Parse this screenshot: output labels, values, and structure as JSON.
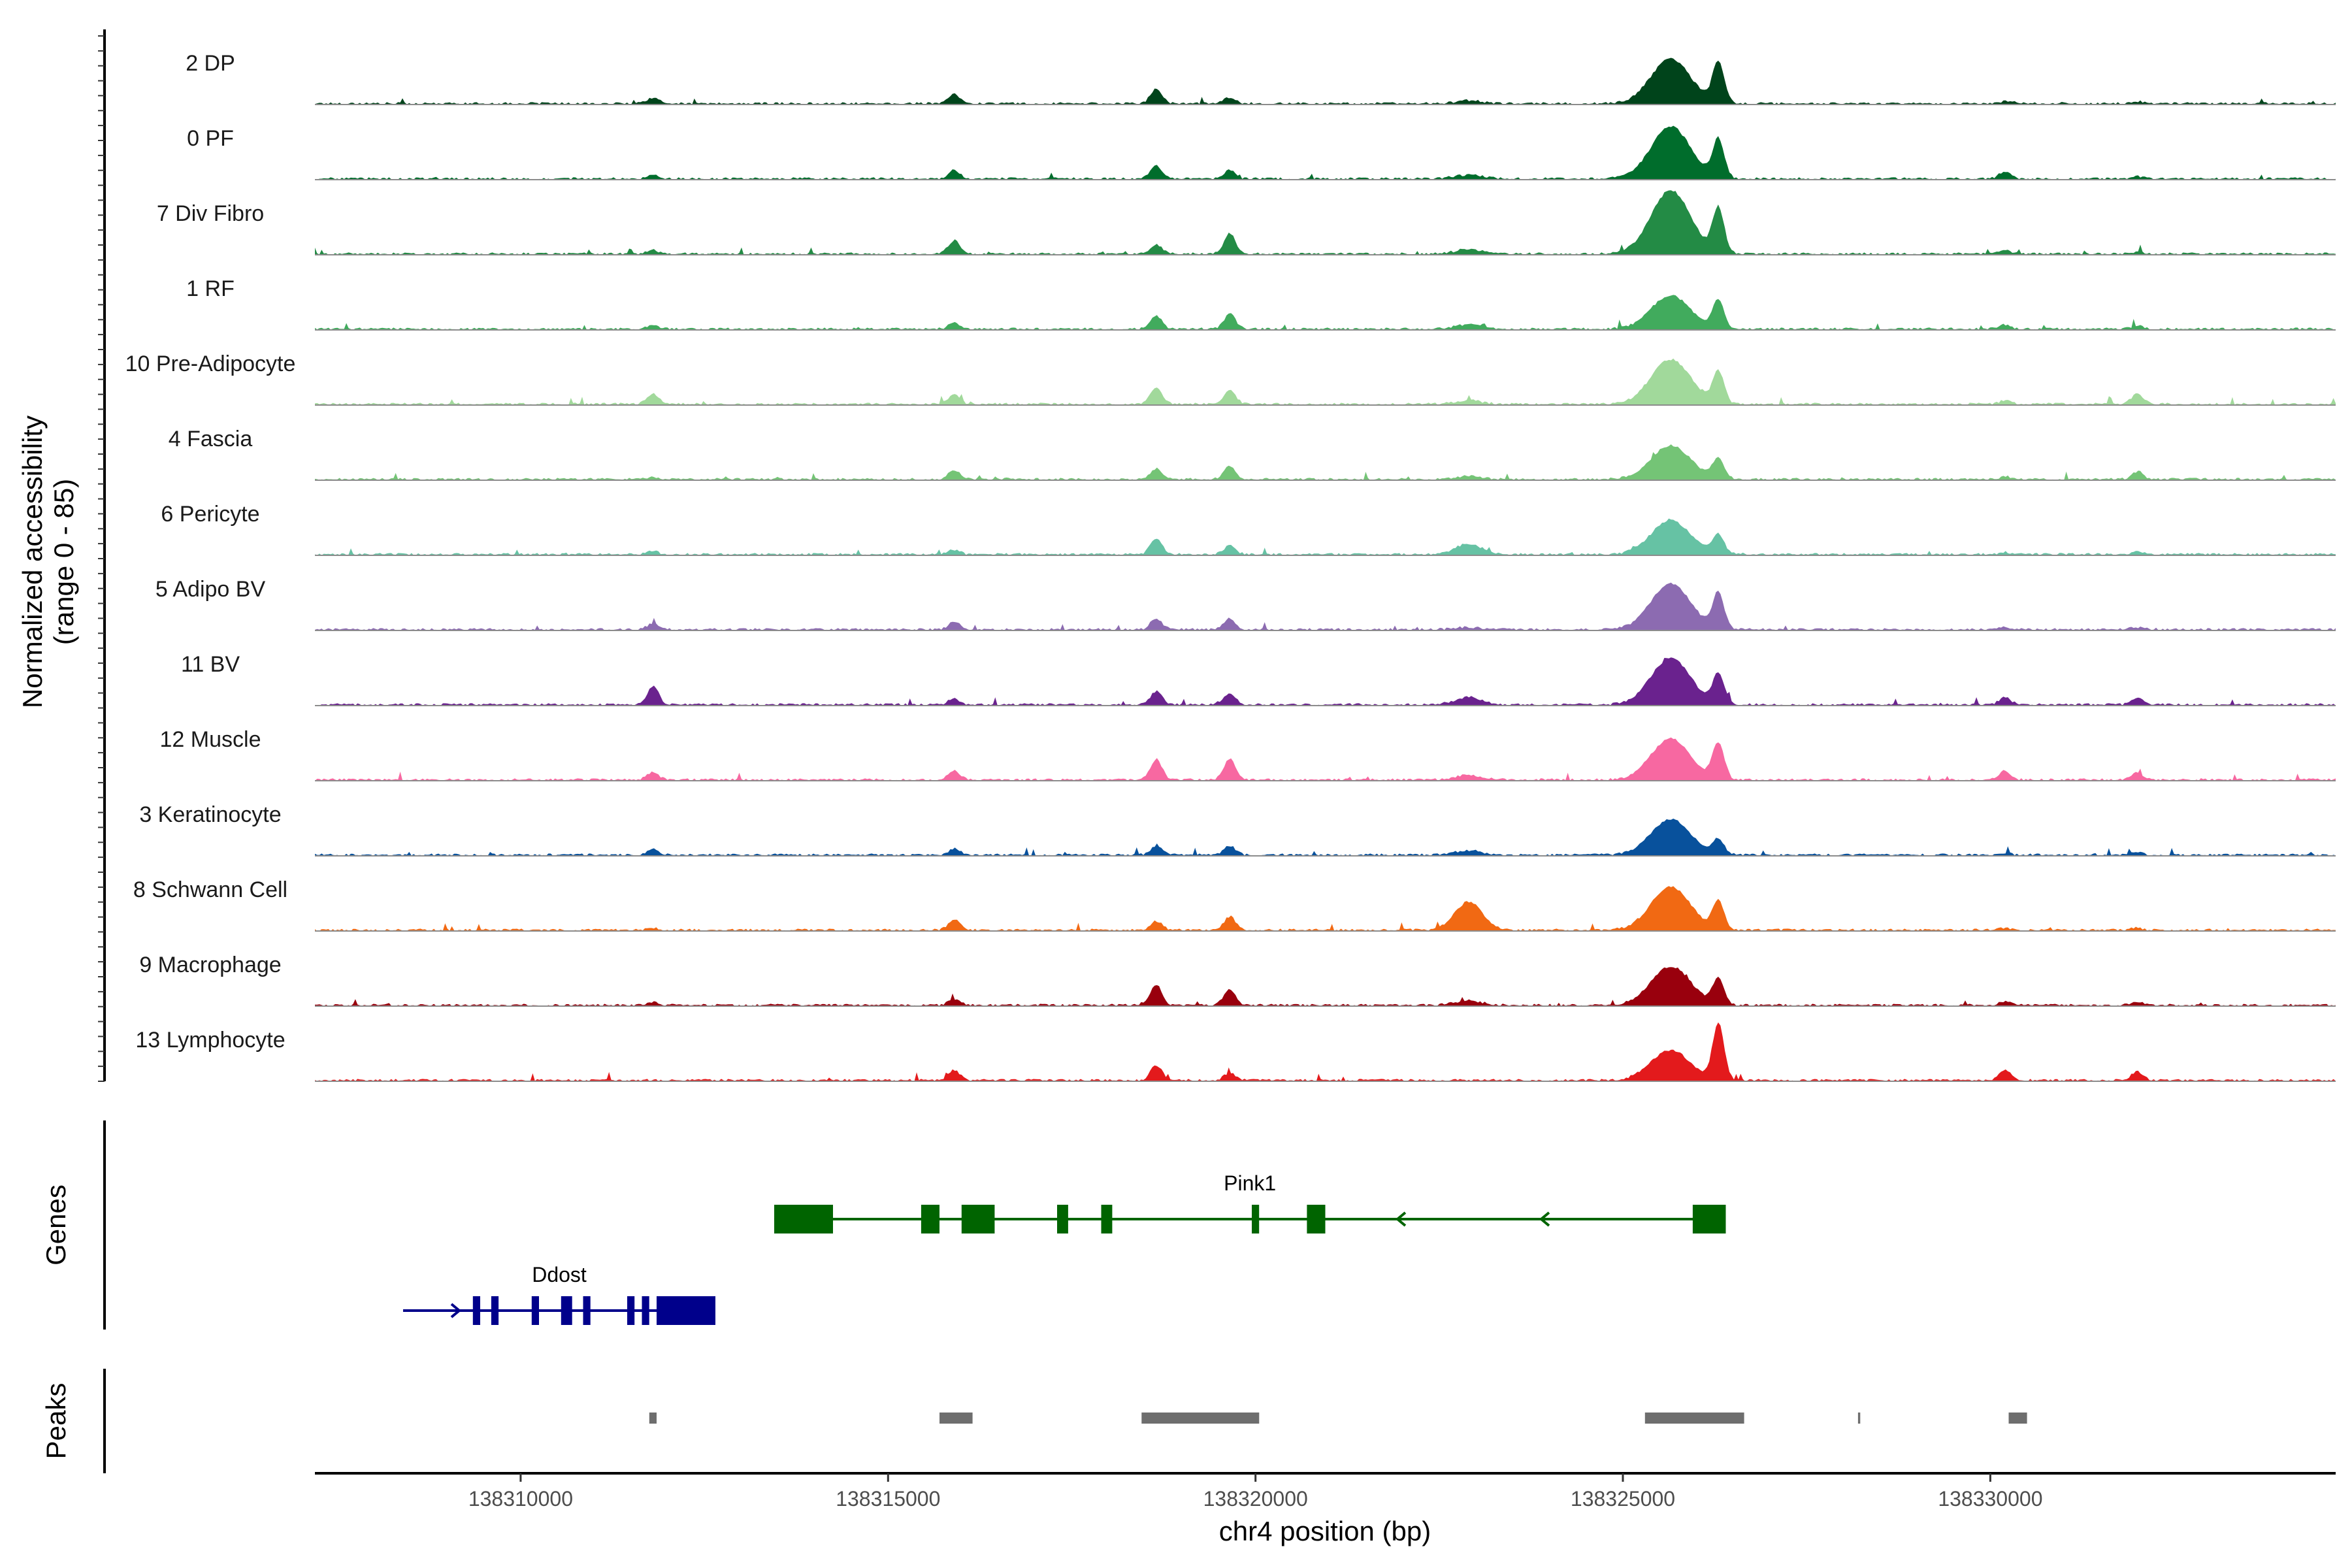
{
  "chart_data": {
    "type": "area",
    "title": "",
    "region": "chr4",
    "xlabel": "chr4 position (bp)",
    "ylabel": "Normalized accessibility",
    "ylabel_range": "(range 0 - 85)",
    "ylim": [
      0,
      85
    ],
    "xlim": [
      138307200,
      138334700
    ],
    "x_ticks": [
      138310000,
      138315000,
      138320000,
      138325000,
      138330000
    ],
    "x_tick_labels": [
      "138310000",
      "138315000",
      "138320000",
      "138325000",
      "138330000"
    ],
    "peak_centers": [
      138311800,
      138315900,
      138318650,
      138319650,
      138322900,
      138325650,
      138326300,
      138330200,
      138332000
    ],
    "series": [
      {
        "name": "2 DP",
        "color": "#00441b",
        "heights": [
          8,
          12,
          20,
          8,
          4,
          60,
          55,
          3,
          3
        ]
      },
      {
        "name": "0 PF",
        "color": "#006d2c",
        "heights": [
          5,
          12,
          18,
          12,
          5,
          70,
          52,
          10,
          3
        ]
      },
      {
        "name": "7 Div Fibro",
        "color": "#238b45",
        "heights": [
          5,
          18,
          12,
          28,
          6,
          85,
          60,
          5,
          3
        ]
      },
      {
        "name": "1 RF",
        "color": "#41ab5d",
        "heights": [
          4,
          8,
          18,
          20,
          6,
          45,
          38,
          6,
          4
        ]
      },
      {
        "name": "10 Pre-Adipocyte",
        "color": "#a1d99b",
        "heights": [
          14,
          14,
          22,
          20,
          5,
          60,
          42,
          5,
          14
        ]
      },
      {
        "name": "4 Fascia",
        "color": "#74c476",
        "heights": [
          3,
          12,
          14,
          18,
          4,
          45,
          28,
          3,
          10
        ]
      },
      {
        "name": "6 Pericyte",
        "color": "#66c2a4",
        "heights": [
          4,
          6,
          22,
          12,
          14,
          45,
          25,
          3,
          3
        ]
      },
      {
        "name": "5 Adipo BV",
        "color": "#8c6bb1",
        "heights": [
          8,
          10,
          15,
          15,
          3,
          62,
          48,
          3,
          3
        ]
      },
      {
        "name": "11 BV",
        "color": "#6a228e",
        "heights": [
          25,
          8,
          18,
          15,
          10,
          62,
          40,
          10,
          8
        ]
      },
      {
        "name": "12 Muscle",
        "color": "#f768a1",
        "heights": [
          10,
          12,
          28,
          28,
          6,
          55,
          48,
          12,
          10
        ]
      },
      {
        "name": "3 Keratinocyte",
        "color": "#08519c",
        "heights": [
          8,
          8,
          12,
          12,
          6,
          48,
          20,
          3,
          3
        ]
      },
      {
        "name": "8 Schwann Cell",
        "color": "#f16913",
        "heights": [
          3,
          15,
          12,
          18,
          38,
          58,
          38,
          3,
          3
        ]
      },
      {
        "name": "9 Macrophage",
        "color": "#99000d",
        "heights": [
          4,
          8,
          28,
          22,
          6,
          52,
          35,
          5,
          5
        ]
      },
      {
        "name": "13 Lymphocyte",
        "color": "#e31a1c",
        "heights": [
          0,
          14,
          20,
          10,
          0,
          40,
          75,
          14,
          12
        ]
      }
    ],
    "genes": [
      {
        "name": "Pink1",
        "strand": "-",
        "color": "#006400",
        "start": 138313450,
        "end": 138326400,
        "exons": [
          [
            138313450,
            138314250
          ],
          [
            138315450,
            138315700
          ],
          [
            138316000,
            138316450
          ],
          [
            138317300,
            138317450
          ],
          [
            138317900,
            138318050
          ],
          [
            138319950,
            138320050
          ],
          [
            138320700,
            138320950
          ],
          [
            138325950,
            138326400
          ]
        ]
      },
      {
        "name": "Ddost",
        "strand": "+",
        "color": "#00008b",
        "start": 138308400,
        "end": 138312650,
        "exons": [
          [
            138309350,
            138309450
          ],
          [
            138309600,
            138309700
          ],
          [
            138310150,
            138310250
          ],
          [
            138310550,
            138310700
          ],
          [
            138310850,
            138310950
          ],
          [
            138311450,
            138311550
          ],
          [
            138311650,
            138311750
          ],
          [
            138311850,
            138312650
          ]
        ]
      }
    ],
    "peaks": [
      [
        138311750,
        138311850
      ],
      [
        138315700,
        138316150
      ],
      [
        138318450,
        138320050
      ],
      [
        138325300,
        138326650
      ],
      [
        138328200,
        138328230
      ],
      [
        138330250,
        138330500
      ]
    ],
    "panel_labels": {
      "genes": "Genes",
      "peaks": "Peaks"
    },
    "peak_color": "#6e6e6e"
  }
}
